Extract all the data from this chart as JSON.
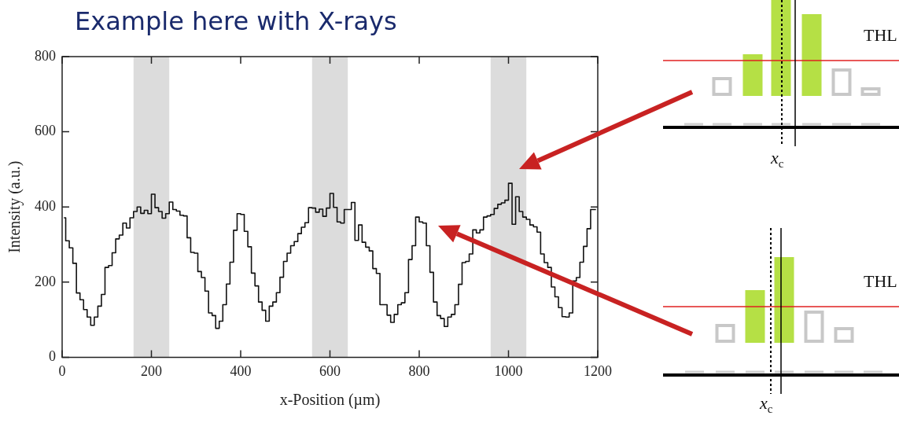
{
  "chart_data": {
    "type": "step",
    "title": "Example here with X-rays",
    "xlabel": "x-Position (µm)",
    "ylabel": "Intensity (a.u.)",
    "color": "#111111",
    "x": [
      4,
      12,
      20,
      28,
      36,
      44,
      52,
      60,
      68,
      76,
      84,
      92,
      100,
      108,
      116,
      124,
      132,
      140,
      148,
      156,
      164,
      172,
      180,
      188,
      196,
      204,
      212,
      220,
      228,
      236,
      244,
      252,
      260,
      268,
      276,
      284,
      292,
      300,
      308,
      316,
      324,
      332,
      340,
      348,
      356,
      364,
      372,
      380,
      388,
      396,
      404,
      412,
      420,
      428,
      436,
      444,
      452,
      460,
      468,
      476,
      484,
      492,
      500,
      508,
      516,
      524,
      532,
      540,
      548,
      556,
      564,
      572,
      580,
      588,
      596,
      604,
      612,
      620,
      628,
      636,
      644,
      652,
      660,
      668,
      676,
      684,
      692,
      700,
      708,
      716,
      724,
      732,
      740,
      748,
      756,
      764,
      772,
      780,
      788,
      796,
      804,
      812,
      820,
      828,
      836,
      844,
      852,
      860,
      868,
      876,
      884,
      892,
      900,
      908,
      916,
      924,
      932,
      940,
      948,
      956,
      964,
      972,
      980,
      988,
      996,
      1004,
      1012,
      1020,
      1028,
      1036,
      1044,
      1052,
      1060,
      1068,
      1076,
      1084,
      1092,
      1100,
      1108,
      1116,
      1124,
      1132,
      1140,
      1148,
      1156,
      1164,
      1172,
      1180,
      1188,
      1196
    ],
    "values": [
      371,
      310,
      291,
      250,
      171,
      153,
      127,
      107,
      85,
      107,
      136,
      167,
      239,
      244,
      278,
      315,
      325,
      357,
      344,
      371,
      388,
      400,
      383,
      391,
      382,
      434,
      398,
      388,
      370,
      382,
      413,
      393,
      389,
      378,
      376,
      318,
      279,
      277,
      228,
      212,
      176,
      118,
      111,
      77,
      96,
      140,
      195,
      253,
      338,
      382,
      380,
      335,
      294,
      224,
      190,
      147,
      125,
      96,
      136,
      147,
      172,
      213,
      255,
      277,
      297,
      308,
      329,
      346,
      358,
      398,
      397,
      386,
      394,
      375,
      397,
      436,
      399,
      360,
      357,
      393,
      393,
      412,
      311,
      352,
      306,
      293,
      283,
      236,
      223,
      140,
      140,
      112,
      93,
      114,
      140,
      145,
      172,
      260,
      297,
      373,
      360,
      357,
      297,
      226,
      147,
      111,
      103,
      82,
      107,
      114,
      140,
      194,
      252,
      255,
      275,
      339,
      331,
      339,
      373,
      376,
      380,
      396,
      407,
      411,
      418,
      463,
      354,
      427,
      388,
      373,
      367,
      352,
      347,
      333,
      275,
      252,
      239,
      187,
      161,
      132,
      108,
      107,
      118,
      203,
      212,
      253,
      295,
      342,
      393,
      393
    ],
    "xlim": [
      0,
      1200
    ],
    "ylim": [
      0,
      800
    ],
    "xticks": [
      0,
      200,
      400,
      600,
      800,
      1000,
      1200
    ],
    "yticks": [
      0,
      200,
      400,
      600,
      800
    ],
    "grid": false,
    "legend": false,
    "bands": [
      {
        "axis": "x",
        "from": 160,
        "to": 240,
        "color": "#dcdcdc"
      },
      {
        "axis": "x",
        "from": 560,
        "to": 640,
        "color": "#dcdcdc"
      },
      {
        "axis": "x",
        "from": 960,
        "to": 1040,
        "color": "#dcdcdc"
      }
    ],
    "annotations": [
      "THL",
      "x$_{c}$",
      "THL",
      "x$_{c}$"
    ]
  }
}
